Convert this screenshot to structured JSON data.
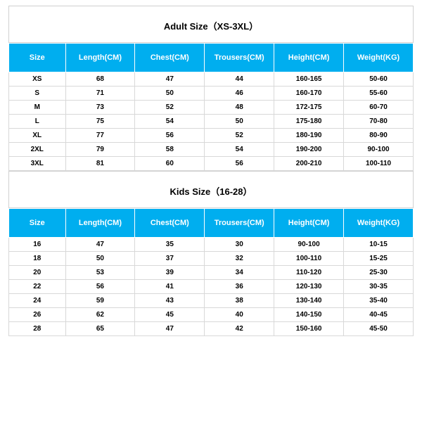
{
  "adult": {
    "title": "Adult Size（XS-3XL）",
    "columns": [
      "Size",
      "Length(CM)",
      "Chest(CM)",
      "Trousers(CM)",
      "Height(CM)",
      "Weight(KG)"
    ],
    "rows": [
      [
        "XS",
        "68",
        "47",
        "44",
        "160-165",
        "50-60"
      ],
      [
        "S",
        "71",
        "50",
        "46",
        "160-170",
        "55-60"
      ],
      [
        "M",
        "73",
        "52",
        "48",
        "172-175",
        "60-70"
      ],
      [
        "L",
        "75",
        "54",
        "50",
        "175-180",
        "70-80"
      ],
      [
        "XL",
        "77",
        "56",
        "52",
        "180-190",
        "80-90"
      ],
      [
        "2XL",
        "79",
        "58",
        "54",
        "190-200",
        "90-100"
      ],
      [
        "3XL",
        "81",
        "60",
        "56",
        "200-210",
        "100-110"
      ]
    ]
  },
  "kids": {
    "title": "Kids Size（16-28）",
    "columns": [
      "Size",
      "Length(CM)",
      "Chest(CM)",
      "Trousers(CM)",
      "Height(CM)",
      "Weight(KG)"
    ],
    "rows": [
      [
        "16",
        "47",
        "35",
        "30",
        "90-100",
        "10-15"
      ],
      [
        "18",
        "50",
        "37",
        "32",
        "100-110",
        "15-25"
      ],
      [
        "20",
        "53",
        "39",
        "34",
        "110-120",
        "25-30"
      ],
      [
        "22",
        "56",
        "41",
        "36",
        "120-130",
        "30-35"
      ],
      [
        "24",
        "59",
        "43",
        "38",
        "130-140",
        "35-40"
      ],
      [
        "26",
        "62",
        "45",
        "40",
        "140-150",
        "40-45"
      ],
      [
        "28",
        "65",
        "47",
        "42",
        "150-160",
        "45-50"
      ]
    ]
  },
  "style": {
    "header_bg": "#00aeef",
    "header_fg": "#ffffff",
    "border_color": "#d8d8d8",
    "title_fontsize": 13,
    "header_fontsize": 11,
    "cell_fontsize": 10
  }
}
